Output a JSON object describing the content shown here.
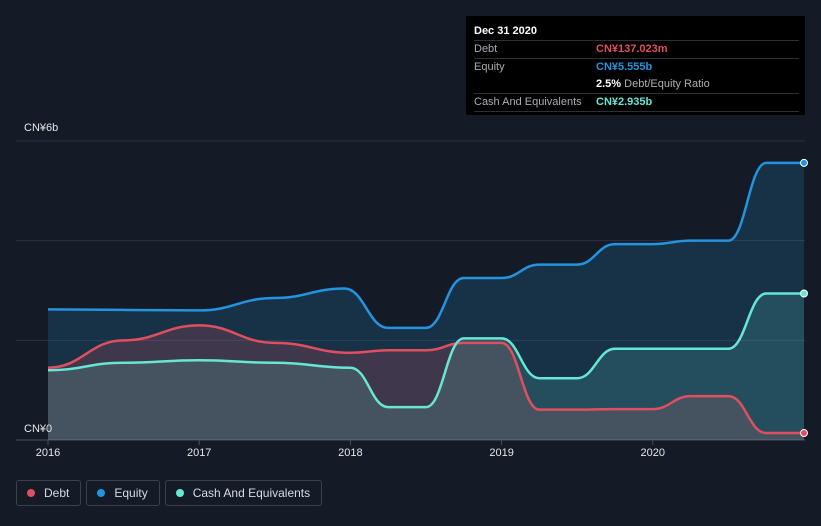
{
  "tooltip": {
    "date": "Dec 31 2020",
    "debt_label": "Debt",
    "debt_value": "CN¥137.023m",
    "equity_label": "Equity",
    "equity_value": "CN¥5.555b",
    "ratio_value": "2.5%",
    "ratio_label": "Debt/Equity Ratio",
    "cash_label": "Cash And Equivalents",
    "cash_value": "CN¥2.935b"
  },
  "legend": {
    "debt": "Debt",
    "equity": "Equity",
    "cash": "Cash And Equivalents"
  },
  "colors": {
    "debt": "#e04f5f",
    "equity": "#2394df",
    "cash": "#67e6d3",
    "background": "#151b26"
  },
  "chart_data": {
    "type": "area",
    "x_ticks": [
      "2016",
      "2017",
      "2018",
      "2019",
      "2020"
    ],
    "y_ticks": [
      "CN¥0",
      "CN¥6b"
    ],
    "ylim": [
      0,
      6
    ],
    "xlim": [
      2016.0,
      2021.0
    ],
    "grid": true,
    "legend_position": "bottom-left",
    "series": [
      {
        "name": "Equity",
        "x": [
          2016.0,
          2017.0,
          2017.5,
          2017.96,
          2018.25,
          2018.5,
          2018.75,
          2019.0,
          2019.25,
          2019.5,
          2019.75,
          2020.0,
          2020.25,
          2020.5,
          2020.75,
          2021.0
        ],
        "y": [
          2.62,
          2.6,
          2.85,
          3.04,
          2.25,
          2.25,
          3.25,
          3.25,
          3.52,
          3.52,
          3.93,
          3.93,
          4.0,
          4.0,
          5.56,
          5.56
        ]
      },
      {
        "name": "Debt",
        "x": [
          2016.0,
          2016.5,
          2017.0,
          2017.5,
          2018.0,
          2018.25,
          2018.5,
          2018.75,
          2019.0,
          2019.25,
          2019.5,
          2019.75,
          2020.0,
          2020.25,
          2020.5,
          2020.75,
          2021.0
        ],
        "y": [
          1.45,
          2.0,
          2.3,
          1.95,
          1.75,
          1.8,
          1.8,
          1.95,
          1.95,
          0.61,
          0.61,
          0.62,
          0.62,
          0.88,
          0.88,
          0.14,
          0.14
        ]
      },
      {
        "name": "Cash And Equivalents",
        "x": [
          2016.0,
          2016.5,
          2017.0,
          2017.5,
          2018.0,
          2018.25,
          2018.5,
          2018.75,
          2019.0,
          2019.25,
          2019.5,
          2019.75,
          2020.0,
          2020.25,
          2020.5,
          2020.75,
          2021.0
        ],
        "y": [
          1.4,
          1.55,
          1.6,
          1.55,
          1.45,
          0.66,
          0.66,
          2.04,
          2.04,
          1.24,
          1.24,
          1.83,
          1.83,
          1.83,
          1.83,
          2.94,
          2.94
        ]
      }
    ]
  }
}
